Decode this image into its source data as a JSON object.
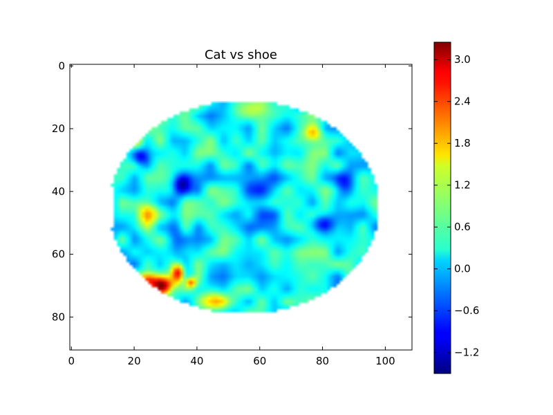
{
  "chart_data": {
    "type": "heatmap",
    "title": "Cat vs shoe",
    "xlabel": "",
    "ylabel": "",
    "xlim": [
      -0.5,
      108.5
    ],
    "ylim": [
      90.5,
      -0.5
    ],
    "x_ticks": [
      0,
      20,
      40,
      60,
      80,
      100
    ],
    "x_tick_labels": [
      "0",
      "20",
      "40",
      "60",
      "80",
      "100"
    ],
    "y_ticks": [
      0,
      20,
      40,
      60,
      80
    ],
    "y_tick_labels": [
      "0",
      "20",
      "40",
      "60",
      "80"
    ],
    "grid": false,
    "colormap": "jet",
    "colorbar": {
      "vmin": -1.5,
      "vmax": 3.25,
      "ticks": [
        -1.2,
        -0.6,
        0.0,
        0.6,
        1.2,
        1.8,
        2.4,
        3.0
      ],
      "tick_labels": [
        "−1.2",
        "−0.6",
        "0.0",
        "0.6",
        "1.2",
        "1.8",
        "2.4",
        "3.0"
      ]
    },
    "mask_region": {
      "description_units": "data",
      "center_x": 55,
      "center_y": 45,
      "radius_x": 43,
      "radius_y": 34
    },
    "background_value": 0.3,
    "hotspots": [
      {
        "x": 29,
        "y": 70,
        "value": 3.0,
        "sx": 3,
        "sy": 2
      },
      {
        "x": 34,
        "y": 66,
        "value": 2.8,
        "sx": 1.5,
        "sy": 2
      },
      {
        "x": 24,
        "y": 68,
        "value": 2.0,
        "sx": 2,
        "sy": 1.5
      },
      {
        "x": 45,
        "y": 75,
        "value": 1.8,
        "sx": 3,
        "sy": 2
      },
      {
        "x": 38,
        "y": 69,
        "value": 2.1,
        "sx": 1.2,
        "sy": 1.2
      },
      {
        "x": 77,
        "y": 21,
        "value": 1.9,
        "sx": 2,
        "sy": 2
      },
      {
        "x": 24,
        "y": 47,
        "value": 1.5,
        "sx": 4,
        "sy": 3
      },
      {
        "x": 20,
        "y": 24,
        "value": 1.2,
        "sx": 2,
        "sy": 2
      },
      {
        "x": 35,
        "y": 38,
        "value": -1.3,
        "sx": 2.2,
        "sy": 2.5
      },
      {
        "x": 22,
        "y": 29,
        "value": -0.9,
        "sx": 2,
        "sy": 2
      },
      {
        "x": 80,
        "y": 50,
        "value": -0.7,
        "sx": 3,
        "sy": 2
      },
      {
        "x": 87,
        "y": 38,
        "value": -0.6,
        "sx": 2,
        "sy": 3
      },
      {
        "x": 60,
        "y": 40,
        "value": -0.4,
        "sx": 5,
        "sy": 6
      },
      {
        "x": 33,
        "y": 55,
        "value": -0.6,
        "sx": 2,
        "sy": 6
      },
      {
        "x": 57,
        "y": 14,
        "value": 0.9,
        "sx": 4,
        "sy": 2
      },
      {
        "x": 62,
        "y": 30,
        "value": 0.8,
        "sx": 4,
        "sy": 3
      }
    ]
  }
}
